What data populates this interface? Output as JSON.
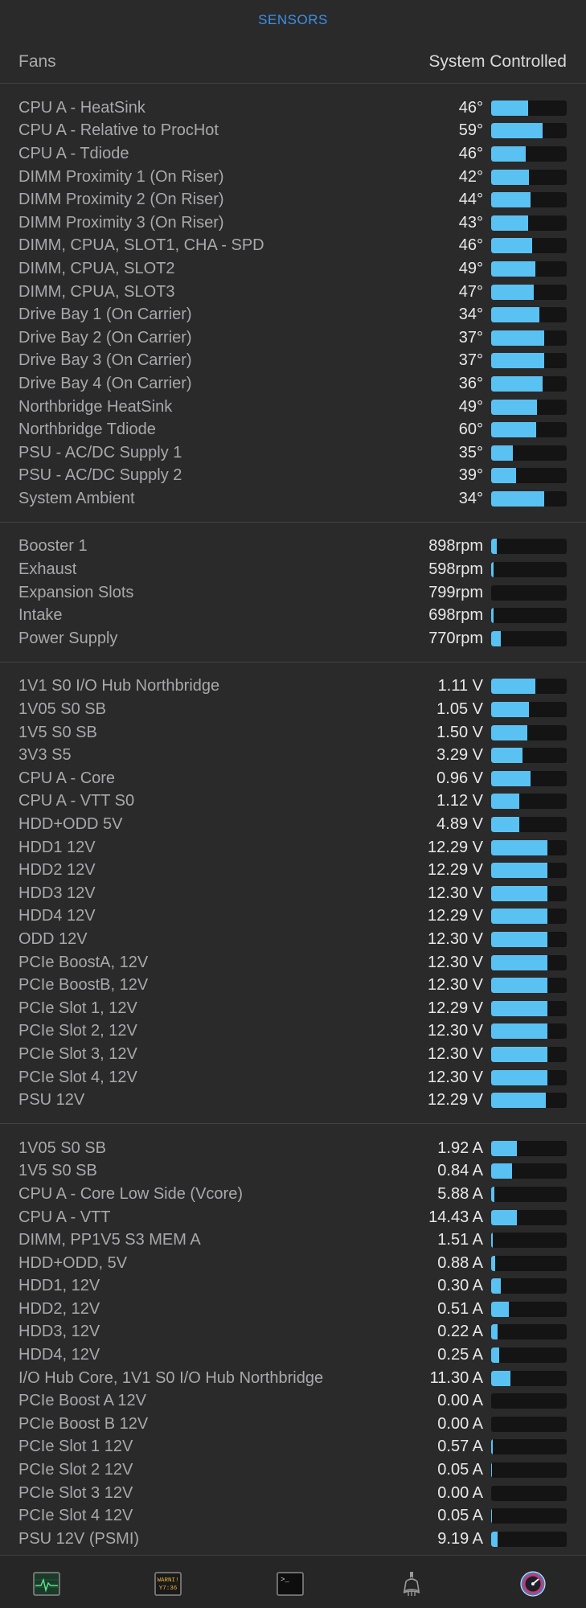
{
  "header": {
    "title": "SENSORS"
  },
  "fans_row": {
    "label": "Fans",
    "mode": "System Controlled"
  },
  "colors": {
    "accent": "#3d8fe6",
    "bar_fill": "#5ac2f2",
    "bar_track": "#141414",
    "background": "#2a2a2b"
  },
  "sections": [
    {
      "name": "temperatures",
      "rows": [
        {
          "label": "CPU A - HeatSink",
          "value": "46°",
          "level": 0.49
        },
        {
          "label": "CPU A - Relative to ProcHot",
          "value": "59°",
          "level": 0.68
        },
        {
          "label": "CPU A - Tdiode",
          "value": "46°",
          "level": 0.46
        },
        {
          "label": "DIMM Proximity 1 (On Riser)",
          "value": "42°",
          "level": 0.5
        },
        {
          "label": "DIMM Proximity 2 (On Riser)",
          "value": "44°",
          "level": 0.52
        },
        {
          "label": "DIMM Proximity 3 (On Riser)",
          "value": "43°",
          "level": 0.49
        },
        {
          "label": "DIMM, CPUA, SLOT1, CHA - SPD",
          "value": "46°",
          "level": 0.54
        },
        {
          "label": "DIMM, CPUA, SLOT2",
          "value": "49°",
          "level": 0.58
        },
        {
          "label": "DIMM, CPUA, SLOT3",
          "value": "47°",
          "level": 0.56
        },
        {
          "label": "Drive Bay 1 (On Carrier)",
          "value": "34°",
          "level": 0.64
        },
        {
          "label": "Drive Bay 2 (On Carrier)",
          "value": "37°",
          "level": 0.7
        },
        {
          "label": "Drive Bay 3 (On Carrier)",
          "value": "37°",
          "level": 0.7
        },
        {
          "label": "Drive Bay 4 (On Carrier)",
          "value": "36°",
          "level": 0.68
        },
        {
          "label": "Northbridge HeatSink",
          "value": "49°",
          "level": 0.61
        },
        {
          "label": "Northbridge Tdiode",
          "value": "60°",
          "level": 0.6
        },
        {
          "label": "PSU - AC/DC Supply 1",
          "value": "35°",
          "level": 0.29
        },
        {
          "label": "PSU - AC/DC Supply 2",
          "value": "39°",
          "level": 0.33
        },
        {
          "label": "System Ambient",
          "value": "34°",
          "level": 0.7
        }
      ]
    },
    {
      "name": "fans",
      "rows": [
        {
          "label": "Booster 1",
          "value": "898rpm",
          "level": 0.07
        },
        {
          "label": "Exhaust",
          "value": "598rpm",
          "level": 0.03
        },
        {
          "label": "Expansion Slots",
          "value": "799rpm",
          "level": 0.0
        },
        {
          "label": "Intake",
          "value": "698rpm",
          "level": 0.03
        },
        {
          "label": "Power Supply",
          "value": "770rpm",
          "level": 0.13
        }
      ]
    },
    {
      "name": "voltages",
      "rows": [
        {
          "label": "1V1 S0 I/O Hub Northbridge",
          "value": "1.11 V",
          "level": 0.58
        },
        {
          "label": "1V05 S0 SB",
          "value": "1.05 V",
          "level": 0.5
        },
        {
          "label": "1V5 S0 SB",
          "value": "1.50 V",
          "level": 0.48
        },
        {
          "label": "3V3 S5",
          "value": "3.29 V",
          "level": 0.42
        },
        {
          "label": "CPU A - Core",
          "value": "0.96 V",
          "level": 0.52
        },
        {
          "label": "CPU A - VTT S0",
          "value": "1.12 V",
          "level": 0.37
        },
        {
          "label": "HDD+ODD 5V",
          "value": "4.89 V",
          "level": 0.37
        },
        {
          "label": "HDD1 12V",
          "value": "12.29 V",
          "level": 0.74
        },
        {
          "label": "HDD2 12V",
          "value": "12.29 V",
          "level": 0.74
        },
        {
          "label": "HDD3 12V",
          "value": "12.30 V",
          "level": 0.74
        },
        {
          "label": "HDD4 12V",
          "value": "12.29 V",
          "level": 0.74
        },
        {
          "label": "ODD 12V",
          "value": "12.30 V",
          "level": 0.74
        },
        {
          "label": "PCIe BoostA, 12V",
          "value": "12.30 V",
          "level": 0.74
        },
        {
          "label": "PCIe BoostB, 12V",
          "value": "12.30 V",
          "level": 0.74
        },
        {
          "label": "PCIe Slot 1, 12V",
          "value": "12.29 V",
          "level": 0.74
        },
        {
          "label": "PCIe Slot 2, 12V",
          "value": "12.30 V",
          "level": 0.74
        },
        {
          "label": "PCIe Slot 3, 12V",
          "value": "12.30 V",
          "level": 0.74
        },
        {
          "label": "PCIe Slot 4, 12V",
          "value": "12.30 V",
          "level": 0.74
        },
        {
          "label": "PSU 12V",
          "value": "12.29 V",
          "level": 0.72
        }
      ]
    },
    {
      "name": "currents",
      "rows": [
        {
          "label": "1V05 S0 SB",
          "value": "1.92 A",
          "level": 0.34
        },
        {
          "label": "1V5 S0 SB",
          "value": "0.84 A",
          "level": 0.28
        },
        {
          "label": "CPU A - Core Low Side (Vcore)",
          "value": "5.88 A",
          "level": 0.04
        },
        {
          "label": "CPU A - VTT",
          "value": "14.43 A",
          "level": 0.34
        },
        {
          "label": "DIMM, PP1V5 S3 MEM A",
          "value": "1.51 A",
          "level": 0.02
        },
        {
          "label": "HDD+ODD, 5V",
          "value": "0.88 A",
          "level": 0.05
        },
        {
          "label": "HDD1, 12V",
          "value": "0.30 A",
          "level": 0.13
        },
        {
          "label": "HDD2, 12V",
          "value": "0.51 A",
          "level": 0.23
        },
        {
          "label": "HDD3, 12V",
          "value": "0.22 A",
          "level": 0.09
        },
        {
          "label": "HDD4, 12V",
          "value": "0.25 A",
          "level": 0.11
        },
        {
          "label": "I/O Hub Core, 1V1 S0 I/O Hub Northbridge",
          "value": "11.30 A",
          "level": 0.26
        },
        {
          "label": "PCIe Boost A 12V",
          "value": "0.00 A",
          "level": 0.0
        },
        {
          "label": "PCIe Boost B 12V",
          "value": "0.00 A",
          "level": 0.0
        },
        {
          "label": "PCIe Slot 1 12V",
          "value": "0.57 A",
          "level": 0.02
        },
        {
          "label": "PCIe Slot 2 12V",
          "value": "0.05 A",
          "level": 0.01
        },
        {
          "label": "PCIe Slot 3 12V",
          "value": "0.00 A",
          "level": 0.0
        },
        {
          "label": "PCIe Slot 4 12V",
          "value": "0.05 A",
          "level": 0.01
        },
        {
          "label": "PSU 12V (PSMI)",
          "value": "9.19 A",
          "level": 0.09
        }
      ]
    }
  ],
  "tabbar": {
    "tabs": [
      {
        "name": "monitor-tab",
        "icon": "activity-monitor-icon",
        "selected": false
      },
      {
        "name": "console-log-tab",
        "icon": "console-log-icon",
        "selected": false,
        "badge_line1": "WARNI!",
        "badge_line2": "Y7:36"
      },
      {
        "name": "terminal-tab",
        "icon": "terminal-icon",
        "selected": false,
        "prompt": ">_"
      },
      {
        "name": "system-information-tab",
        "icon": "system-information-icon",
        "selected": false
      },
      {
        "name": "sensors-tab",
        "icon": "sensors-gauge-icon",
        "selected": true
      }
    ]
  }
}
